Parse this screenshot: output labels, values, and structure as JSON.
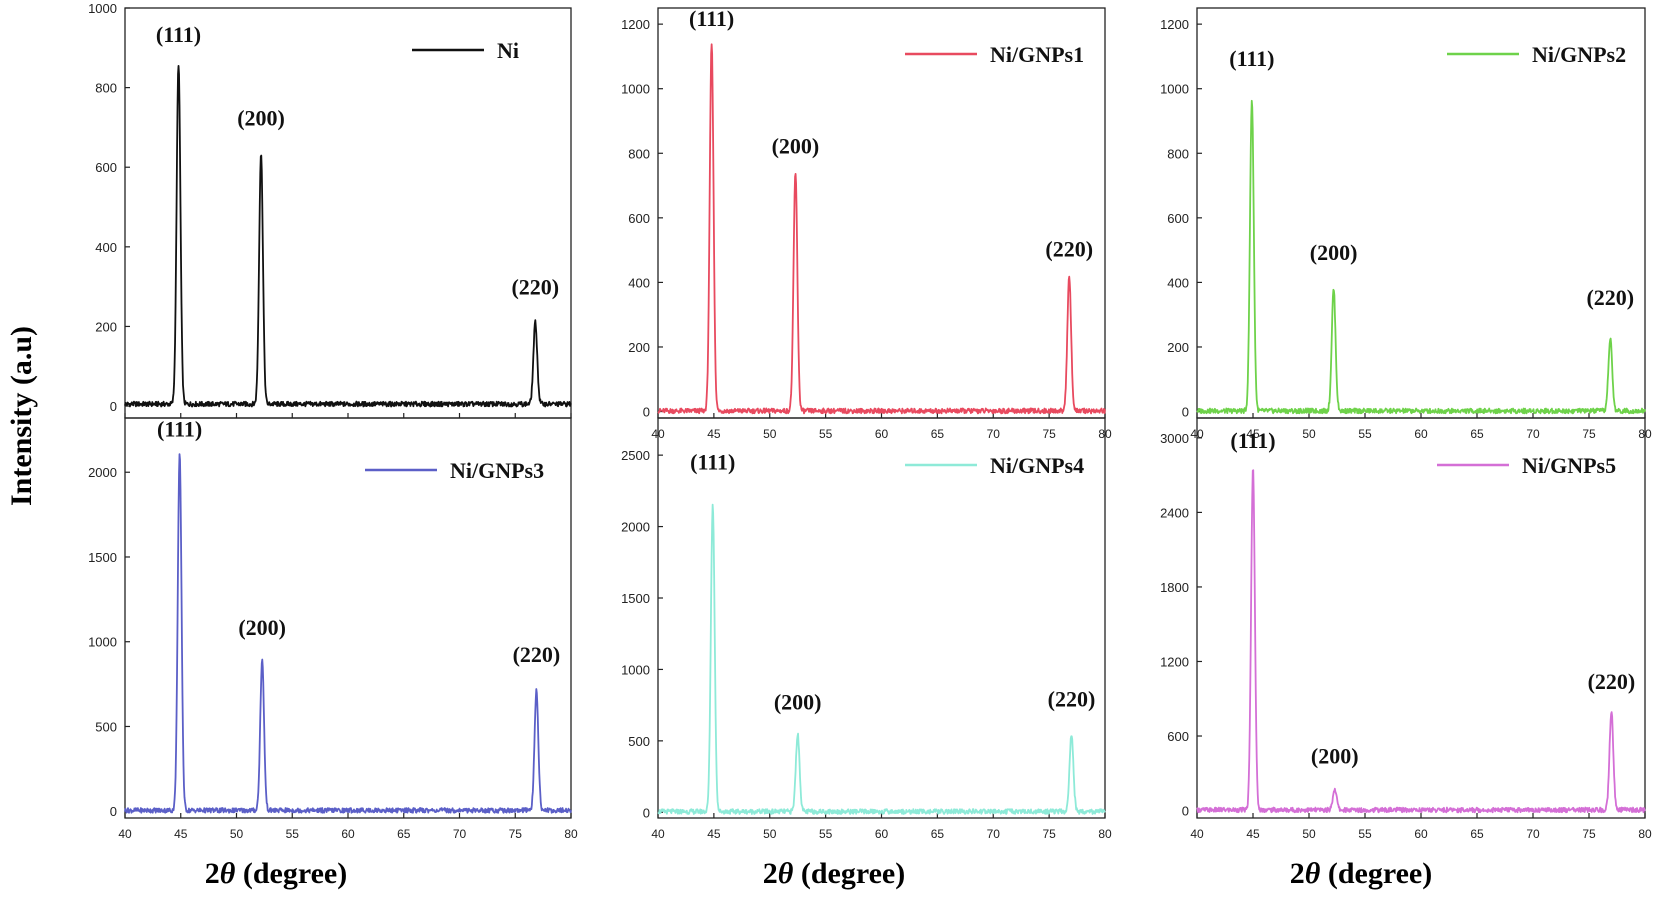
{
  "figure": {
    "ylabel": "Intensity (a.u)",
    "xlabel_prefix": "2",
    "xlabel_symbol": "θ",
    "xlabel_suffix": " (degree)"
  },
  "chart_data": [
    {
      "type": "line",
      "legend": "Ni",
      "color": "#111111",
      "xlim": [
        40,
        80
      ],
      "ylim": [
        -30,
        1000
      ],
      "x_ticks": [
        40,
        45,
        50,
        55,
        60,
        65,
        70,
        75,
        80
      ],
      "y_ticks": [
        0,
        200,
        400,
        600,
        800,
        1000
      ],
      "baseline": 5,
      "peaks": [
        {
          "x": 44.8,
          "y": 860,
          "label": "(111)",
          "label_y": 915
        },
        {
          "x": 52.2,
          "y": 635,
          "label": "(200)",
          "label_y": 705
        },
        {
          "x": 76.8,
          "y": 210,
          "label": "(220)",
          "label_y": 280
        }
      ]
    },
    {
      "type": "line",
      "legend": "Ni/GNPs1",
      "color": "#e84a5f",
      "xlim": [
        40,
        80
      ],
      "ylim": [
        -20,
        1250
      ],
      "x_ticks": [
        40,
        45,
        50,
        55,
        60,
        65,
        70,
        75,
        80
      ],
      "y_ticks": [
        0,
        200,
        400,
        600,
        800,
        1000,
        1200
      ],
      "baseline": 2,
      "peaks": [
        {
          "x": 44.8,
          "y": 1140,
          "label": "(111)",
          "label_y": 1195
        },
        {
          "x": 52.3,
          "y": 740,
          "label": "(200)",
          "label_y": 800
        },
        {
          "x": 76.8,
          "y": 415,
          "label": "(220)",
          "label_y": 480
        }
      ]
    },
    {
      "type": "line",
      "legend": "Ni/GNPs2",
      "color": "#6ed24a",
      "xlim": [
        40,
        80
      ],
      "ylim": [
        -20,
        1250
      ],
      "x_ticks": [
        40,
        45,
        50,
        55,
        60,
        65,
        70,
        75,
        80
      ],
      "y_ticks": [
        0,
        200,
        400,
        600,
        800,
        1000,
        1200
      ],
      "baseline": 2,
      "peaks": [
        {
          "x": 44.9,
          "y": 965,
          "label": "(111)",
          "label_y": 1070
        },
        {
          "x": 52.2,
          "y": 380,
          "label": "(200)",
          "label_y": 470
        },
        {
          "x": 76.9,
          "y": 225,
          "label": "(220)",
          "label_y": 330
        }
      ]
    },
    {
      "type": "line",
      "legend": "Ni/GNPs3",
      "color": "#5b5fc7",
      "xlim": [
        40,
        80
      ],
      "ylim": [
        -40,
        2320
      ],
      "x_ticks": [
        40,
        45,
        50,
        55,
        60,
        65,
        70,
        75,
        80
      ],
      "y_ticks": [
        0,
        500,
        1000,
        1500,
        2000
      ],
      "baseline": 5,
      "peaks": [
        {
          "x": 44.9,
          "y": 2100,
          "label": "(111)",
          "label_y": 2210
        },
        {
          "x": 52.3,
          "y": 890,
          "label": "(200)",
          "label_y": 1040
        },
        {
          "x": 76.9,
          "y": 710,
          "label": "(220)",
          "label_y": 880
        }
      ]
    },
    {
      "type": "line",
      "legend": "Ni/GNPs4",
      "color": "#8eead8",
      "xlim": [
        40,
        80
      ],
      "ylim": [
        -40,
        2760
      ],
      "x_ticks": [
        40,
        45,
        50,
        55,
        60,
        65,
        70,
        75,
        80
      ],
      "y_ticks": [
        0,
        500,
        1000,
        1500,
        2000,
        2500
      ],
      "baseline": 5,
      "peaks": [
        {
          "x": 44.9,
          "y": 2150,
          "label": "(111)",
          "label_y": 2400
        },
        {
          "x": 52.5,
          "y": 545,
          "label": "(200)",
          "label_y": 720
        },
        {
          "x": 77.0,
          "y": 545,
          "label": "(220)",
          "label_y": 740
        }
      ]
    },
    {
      "type": "line",
      "legend": "Ni/GNPs5",
      "color": "#d46fd6",
      "xlim": [
        40,
        80
      ],
      "ylim": [
        -60,
        3160
      ],
      "x_ticks": [
        40,
        45,
        50,
        55,
        60,
        65,
        70,
        75,
        80
      ],
      "y_ticks": [
        0,
        600,
        1200,
        1800,
        2400,
        3000
      ],
      "baseline": 5,
      "peaks": [
        {
          "x": 45.0,
          "y": 2750,
          "label": "(111)",
          "label_y": 2920
        },
        {
          "x": 52.3,
          "y": 175,
          "label": "(200)",
          "label_y": 380
        },
        {
          "x": 77.0,
          "y": 800,
          "label": "(220)",
          "label_y": 980
        }
      ]
    }
  ]
}
